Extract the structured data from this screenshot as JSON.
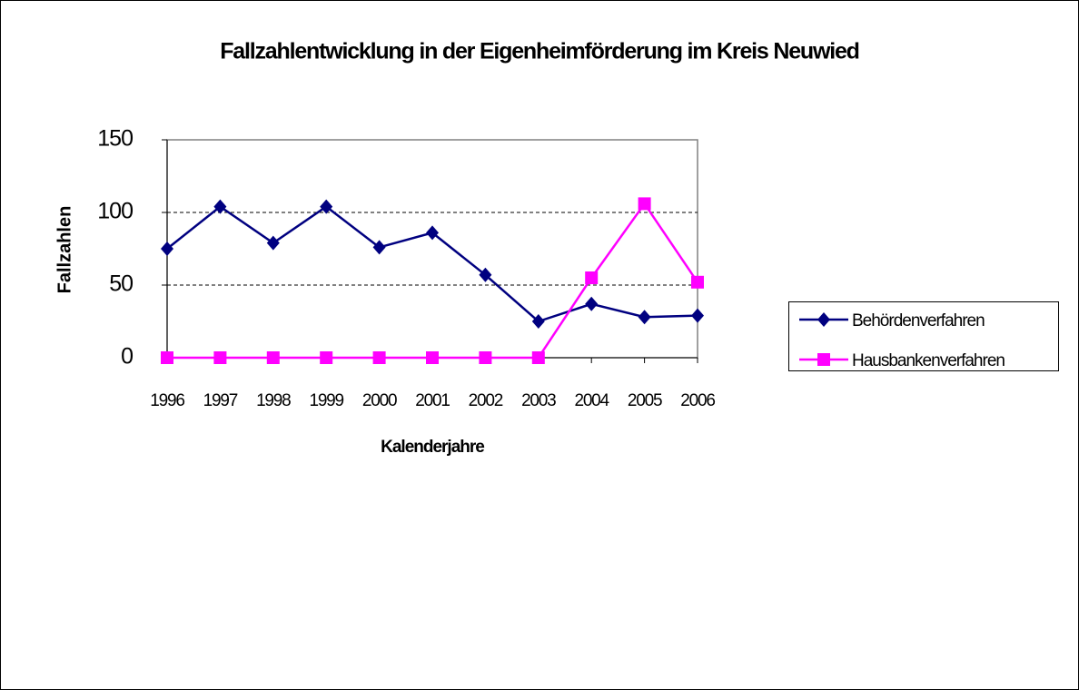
{
  "chart_data": {
    "type": "line",
    "title": "Fallzahlentwicklung in der Eigenheimförderung im Kreis Neuwied",
    "x_label": "Kalenderjahre",
    "y_label": "Fallzahlen",
    "categories": [
      "1996",
      "1997",
      "1998",
      "1999",
      "2000",
      "2001",
      "2002",
      "2003",
      "2004",
      "2005",
      "2006"
    ],
    "series": [
      {
        "name": "Behördenverfahren",
        "color": "#000080",
        "marker": "diamond",
        "values": [
          75,
          104,
          79,
          104,
          76,
          86,
          57,
          25,
          37,
          28,
          29
        ]
      },
      {
        "name": "Hausbankenverfahren",
        "color": "#ff00ff",
        "marker": "square",
        "values": [
          0,
          0,
          0,
          0,
          0,
          0,
          0,
          0,
          55,
          106,
          52
        ]
      }
    ],
    "ylim": [
      0,
      150
    ],
    "yticks": [
      0,
      50,
      100,
      150
    ],
    "grid": true,
    "legend": "right"
  }
}
